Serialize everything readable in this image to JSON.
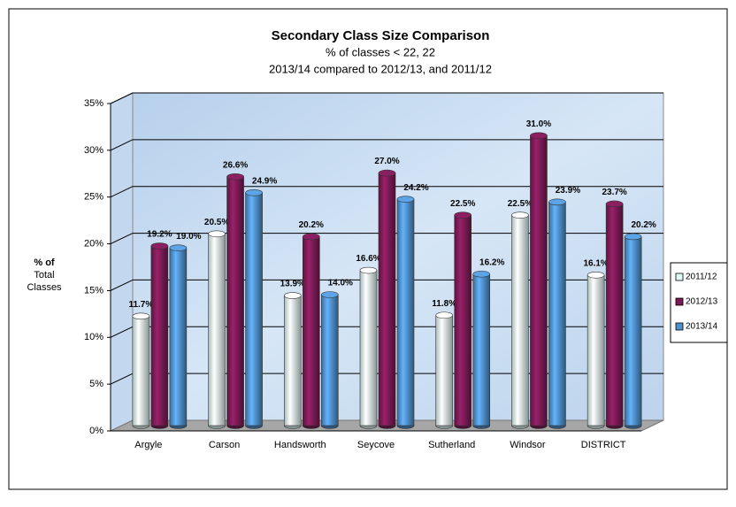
{
  "chart_data": {
    "type": "bar3d",
    "title": "Secondary Class Size Comparison",
    "subtitle": [
      "% of classes < 22, 22",
      "2013/14 compared to 2012/13, and 2011/12"
    ],
    "ylabel": [
      "% of",
      "Total",
      "Classes"
    ],
    "categories": [
      "Argyle",
      "Carson",
      "Handsworth",
      "Seycove",
      "Sutherland",
      "Windsor",
      "DISTRICT"
    ],
    "series": [
      {
        "name": "2011/12",
        "color": "#dff9f6",
        "values": [
          11.7,
          20.5,
          13.9,
          16.6,
          11.8,
          22.5,
          16.1
        ],
        "value_labels": [
          "11.7%",
          "20.5%",
          "13.9%",
          "16.6%",
          "11.8%",
          "22.5%",
          "16.1%"
        ]
      },
      {
        "name": "2012/13",
        "color": "#7a1a55",
        "values": [
          19.2,
          26.6,
          20.2,
          27.0,
          22.5,
          31.0,
          23.7
        ],
        "value_labels": [
          "19.2%",
          "26.6%",
          "20.2%",
          "27.0%",
          "22.5%",
          "31.0%",
          "23.7%"
        ]
      },
      {
        "name": "2013/14",
        "color": "#4f8fca",
        "values": [
          19.0,
          24.9,
          14.0,
          24.2,
          16.2,
          23.9,
          20.2
        ],
        "value_labels": [
          "19.0%",
          "24.9%",
          "14.0%",
          "24.2%",
          "16.2%",
          "23.9%",
          "20.2%"
        ]
      }
    ],
    "ylim": [
      0,
      35
    ],
    "yticks": [
      {
        "value": 0,
        "label": "0%"
      },
      {
        "value": 5,
        "label": "5%"
      },
      {
        "value": 10,
        "label": "10%"
      },
      {
        "value": 15,
        "label": "15%"
      },
      {
        "value": 20,
        "label": "20%"
      },
      {
        "value": 25,
        "label": "25%"
      },
      {
        "value": 30,
        "label": "30%"
      },
      {
        "value": 35,
        "label": "35%"
      }
    ],
    "grid": true,
    "legend": "right"
  }
}
